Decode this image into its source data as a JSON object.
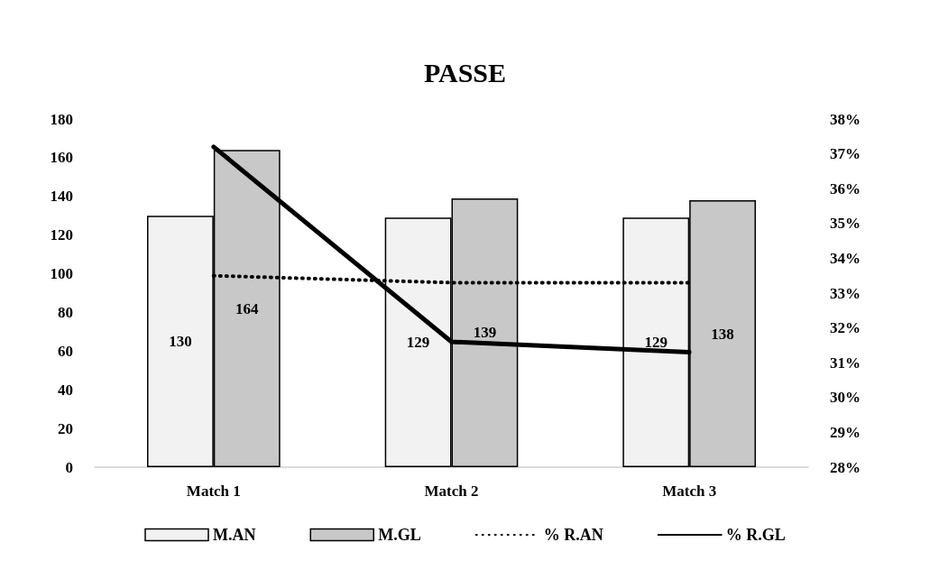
{
  "chart_data": {
    "type": "bar",
    "title": "PASSE",
    "categories": [
      "Match 1",
      "Match 2",
      "Match 3"
    ],
    "series": [
      {
        "name": "M.AN",
        "color": "#f2f2f2",
        "values": [
          130,
          129,
          129
        ],
        "value_labels": [
          "130",
          "129",
          "129"
        ]
      },
      {
        "name": "M.GL",
        "color": "#c8c8c8",
        "values": [
          164,
          139,
          138
        ],
        "value_labels": [
          "164",
          "139",
          "138"
        ]
      },
      {
        "name": "% R.AN",
        "type": "line",
        "axis": "y2",
        "line_style": "dotted",
        "color": "#000000",
        "values": [
          33.5,
          33.3,
          33.3
        ]
      },
      {
        "name": "% R.GL",
        "type": "line",
        "axis": "y2",
        "line_style": "solid",
        "color": "#000000",
        "values": [
          37.2,
          31.6,
          31.3
        ]
      }
    ],
    "ylim": [
      0,
      180
    ],
    "yticks": [
      0,
      20,
      40,
      60,
      80,
      100,
      120,
      140,
      160,
      180
    ],
    "y2lim": [
      28,
      38
    ],
    "y2ticks": [
      {
        "value": 28,
        "label": "28%"
      },
      {
        "value": 29,
        "label": "29%"
      },
      {
        "value": 30,
        "label": "30%"
      },
      {
        "value": 31,
        "label": "31%"
      },
      {
        "value": 32,
        "label": "32%"
      },
      {
        "value": 33,
        "label": "33%"
      },
      {
        "value": 34,
        "label": "34%"
      },
      {
        "value": 35,
        "label": "35%"
      },
      {
        "value": 36,
        "label": "36%"
      },
      {
        "value": 37,
        "label": "37%"
      },
      {
        "value": 38,
        "label": "38%"
      }
    ],
    "grid": false,
    "legend": "bottom",
    "marker": "none"
  }
}
